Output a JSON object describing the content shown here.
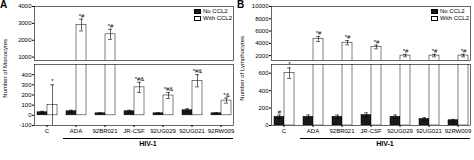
{
  "chart_data": [
    {
      "type": "bar",
      "title": "A",
      "ylabel": "Number of Monocytes",
      "xlabel": "HIV-1",
      "categories": [
        "C",
        "ADA",
        "92BR021",
        "JR-CSF",
        "92UG029",
        "92UG021",
        "92RW009"
      ],
      "series": [
        {
          "name": "No CCL2",
          "color": "#1a1a1a",
          "values": [
            30,
            40,
            20,
            40,
            20,
            50,
            20
          ],
          "errors": [
            10,
            10,
            5,
            10,
            5,
            15,
            5
          ]
        },
        {
          "name": "With CCL2",
          "color": "#ffffff",
          "values": [
            100,
            2900,
            2350,
            275,
            195,
            340,
            145
          ],
          "errors": [
            200,
            350,
            300,
            50,
            30,
            60,
            25
          ],
          "annotations": [
            "*",
            "*#",
            "*#",
            "*#&",
            "*#&",
            "*#&",
            "*&"
          ]
        }
      ],
      "ylim": [
        [
          -100,
          500
        ],
        [
          800,
          4000
        ]
      ],
      "yticks": [
        [
          -100,
          0,
          100,
          200,
          300,
          400
        ],
        [
          1000,
          2000,
          3000,
          4000
        ]
      ],
      "legend": "upper right",
      "grid": false
    },
    {
      "type": "bar",
      "title": "B",
      "ylabel": "Number of Lymphocytes",
      "xlabel": "HIV-1",
      "categories": [
        "C",
        "ADA",
        "92BR021",
        "JR-CSF",
        "92UG029",
        "92UG021",
        "92RW009"
      ],
      "series": [
        {
          "name": "No CCL2",
          "color": "#1a1a1a",
          "values": [
            100,
            100,
            100,
            120,
            100,
            75,
            60
          ],
          "errors": [
            20,
            20,
            20,
            25,
            20,
            15,
            10
          ],
          "annotations": [
            "#",
            null,
            null,
            null,
            null,
            null,
            null
          ]
        },
        {
          "name": "With CCL2",
          "color": "#ffffff",
          "values": [
            600,
            4700,
            4100,
            3400,
            2000,
            2000,
            2000
          ],
          "errors": [
            60,
            400,
            350,
            300,
            200,
            200,
            200
          ],
          "annotations": [
            "*",
            "*#",
            "*#",
            "*#",
            "*#",
            "*#",
            "*#"
          ]
        }
      ],
      "ylim": [
        [
          0,
          700
        ],
        [
          1200,
          10000
        ]
      ],
      "yticks": [
        [
          0,
          200,
          400,
          600
        ],
        [
          2000,
          4000,
          6000,
          8000,
          10000
        ]
      ],
      "legend": "upper right",
      "grid": false
    }
  ]
}
